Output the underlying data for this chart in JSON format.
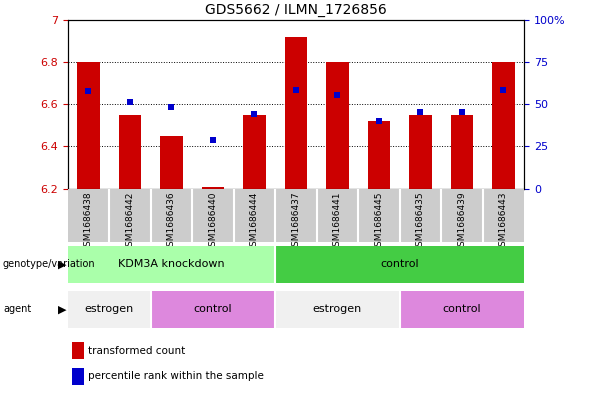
{
  "title": "GDS5662 / ILMN_1726856",
  "samples": [
    "GSM1686438",
    "GSM1686442",
    "GSM1686436",
    "GSM1686440",
    "GSM1686444",
    "GSM1686437",
    "GSM1686441",
    "GSM1686445",
    "GSM1686435",
    "GSM1686439",
    "GSM1686443"
  ],
  "red_values": [
    6.8,
    6.55,
    6.45,
    6.21,
    6.55,
    6.92,
    6.8,
    6.52,
    6.55,
    6.55,
    6.8
  ],
  "blue_values": [
    6.66,
    6.61,
    6.585,
    6.43,
    6.555,
    6.665,
    6.645,
    6.52,
    6.565,
    6.565,
    6.665
  ],
  "ylim_left": [
    6.2,
    7.0
  ],
  "yticks_left": [
    6.2,
    6.4,
    6.6,
    6.8,
    7.0
  ],
  "ytick_labels_left": [
    "6.2",
    "6.4",
    "6.6",
    "6.8",
    "7"
  ],
  "ylim_right": [
    0,
    100
  ],
  "yticks_right": [
    0,
    25,
    50,
    75,
    100
  ],
  "ytick_labels_right": [
    "0",
    "25",
    "50",
    "75",
    "100%"
  ],
  "bar_color": "#cc0000",
  "dot_color": "#0000cc",
  "bar_bottom": 6.2,
  "bar_width": 0.55,
  "genotype_groups": [
    {
      "label": "KDM3A knockdown",
      "start": 0,
      "end": 5
    },
    {
      "label": "control",
      "start": 5,
      "end": 11
    }
  ],
  "genotype_colors": [
    "#aaffaa",
    "#44cc44"
  ],
  "agent_groups": [
    {
      "label": "estrogen",
      "start": 0,
      "end": 2
    },
    {
      "label": "control",
      "start": 2,
      "end": 5
    },
    {
      "label": "estrogen",
      "start": 5,
      "end": 8
    },
    {
      "label": "control",
      "start": 8,
      "end": 11
    }
  ],
  "agent_colors": [
    "#f0f0f0",
    "#dd88dd",
    "#f0f0f0",
    "#dd88dd"
  ],
  "legend_red_label": "transformed count",
  "legend_blue_label": "percentile rank within the sample",
  "background_color": "#ffffff",
  "tick_label_color_left": "#cc0000",
  "tick_label_color_right": "#0000cc",
  "sample_box_color": "#cccccc"
}
